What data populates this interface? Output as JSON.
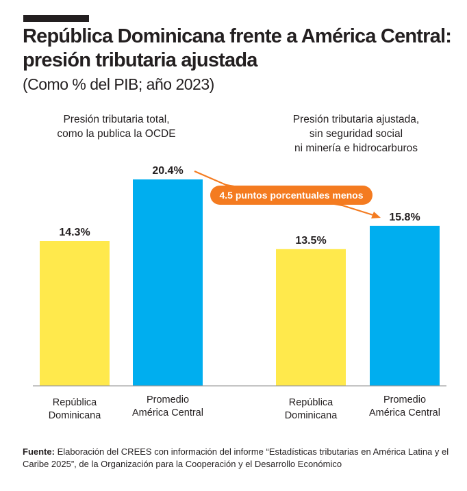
{
  "header": {
    "title": "República Dominicana frente a América Central: presión tributaria ajustada",
    "subtitle": "(Como % del PIB; año 2023)"
  },
  "chart_data": [
    {
      "type": "bar",
      "title": "Presión tributaria total, como la publica la OCDE",
      "categories": [
        "República Dominicana",
        "Promedio América Central"
      ],
      "values": [
        14.3,
        20.4
      ],
      "data_labels": [
        "14.3%",
        "20.4%"
      ],
      "colors": [
        "#FFE94C",
        "#00AEEF"
      ],
      "ylim": [
        0,
        20.4
      ],
      "grid": false
    },
    {
      "type": "bar",
      "title": "Presión tributaria ajustada, sin seguridad social ni minería e hidrocarburos",
      "categories": [
        "República Dominicana",
        "Promedio América Central"
      ],
      "values": [
        13.5,
        15.8
      ],
      "data_labels": [
        "13.5%",
        "15.8%"
      ],
      "colors": [
        "#FFE94C",
        "#00AEEF"
      ],
      "ylim": [
        0,
        20.4
      ],
      "grid": false
    }
  ],
  "annotation": {
    "text": "4.5 puntos porcentuales menos",
    "color": "#F47B20"
  },
  "categories_display": {
    "left": [
      [
        "República",
        "Dominicana"
      ],
      [
        "Promedio",
        "América Central"
      ]
    ],
    "right": [
      [
        "República",
        "Dominicana"
      ],
      [
        "Promedio",
        "América Central"
      ]
    ]
  },
  "panel_titles": {
    "left": [
      "Presión tributaria total,",
      "como la publica la OCDE"
    ],
    "right": [
      "Presión tributaria ajustada,",
      "sin seguridad social",
      "ni minería e hidrocarburos"
    ]
  },
  "footer": {
    "label": "Fuente:",
    "text": " Elaboración del CREES con información del informe “Estadísticas tributarias en América Latina y el Caribe 2025”, de la Organización para la Cooperación y el Desarrollo Económico"
  }
}
